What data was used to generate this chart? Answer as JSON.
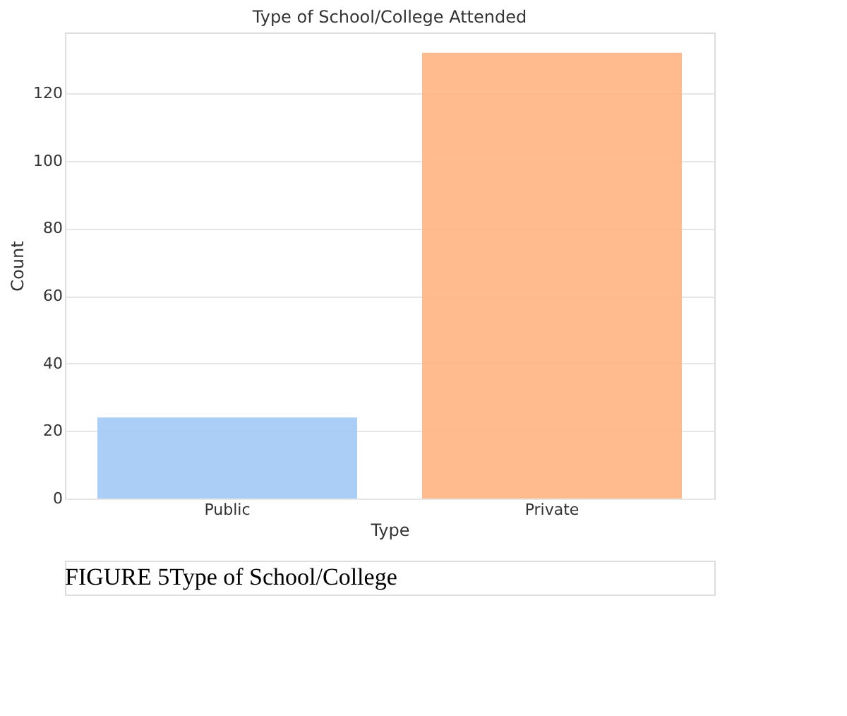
{
  "chart_data": {
    "type": "bar",
    "title": "Type of School/College Attended",
    "xlabel": "Type",
    "ylabel": "Count",
    "categories": [
      "Public",
      "Private"
    ],
    "values": [
      24,
      132
    ],
    "colors": [
      "#a1c9f4",
      "#ffb482"
    ],
    "ylim": [
      0,
      138
    ],
    "yticks": [
      0,
      20,
      40,
      60,
      80,
      100,
      120
    ],
    "grid": "y",
    "annotations": [
      "FIGURE 5Type of School/College"
    ]
  }
}
